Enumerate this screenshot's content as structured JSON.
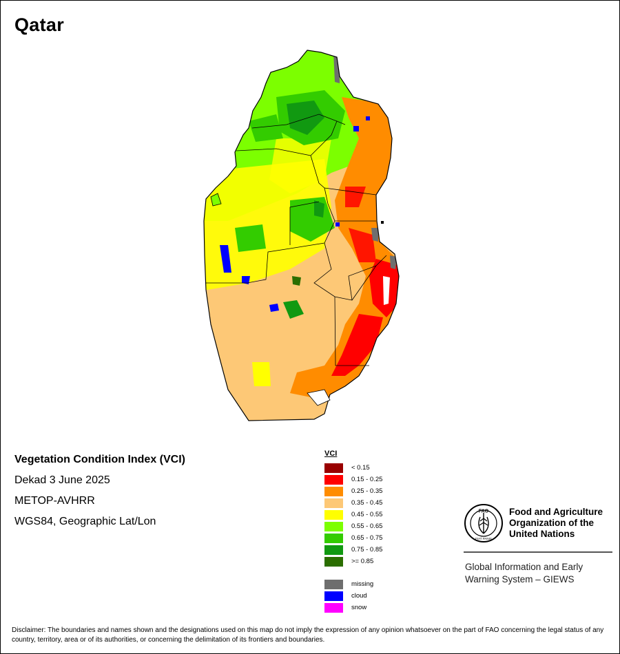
{
  "map": {
    "country": "Qatar",
    "index_title": "Vegetation Condition Index (VCI)",
    "period": "Dekad 3 June 2025",
    "sensor": "METOP-AVHRR",
    "projection": "WGS84, Geographic Lat/Lon"
  },
  "legend": {
    "title": "VCI",
    "classes": [
      {
        "label": "< 0.15",
        "color": "#990000"
      },
      {
        "label": "0.15 - 0.25",
        "color": "#ff0000"
      },
      {
        "label": "0.25 - 0.35",
        "color": "#ff8c00"
      },
      {
        "label": "0.35 - 0.45",
        "color": "#fdc876"
      },
      {
        "label": "0.45 - 0.55",
        "color": "#ffff00"
      },
      {
        "label": "0.55 - 0.65",
        "color": "#7cff00"
      },
      {
        "label": "0.65 - 0.75",
        "color": "#33cc00"
      },
      {
        "label": "0.75 - 0.85",
        "color": "#119911"
      },
      {
        "label": ">= 0.85",
        "color": "#2b6e00"
      }
    ],
    "special": [
      {
        "label": "missing",
        "color": "#6e6e6e"
      },
      {
        "label": "cloud",
        "color": "#0000ff"
      },
      {
        "label": "snow",
        "color": "#ff00ff"
      }
    ]
  },
  "organization": {
    "logo_text": "FAO",
    "logo_ring_text": "FIAT PANIS",
    "name_lines": [
      "Food and Agriculture",
      "Organization of the",
      "United Nations"
    ],
    "system_lines": [
      "Global Information and Early",
      "Warning System – GIEWS"
    ]
  },
  "disclaimer": "Disclaimer: The boundaries and names shown and the designations used on this map do not imply the expression of any opinion whatsoever on the part of FAO concerning the legal status of any country, territory, area or of its authorities, or concerning the delimitation of its frontiers and boundaries."
}
